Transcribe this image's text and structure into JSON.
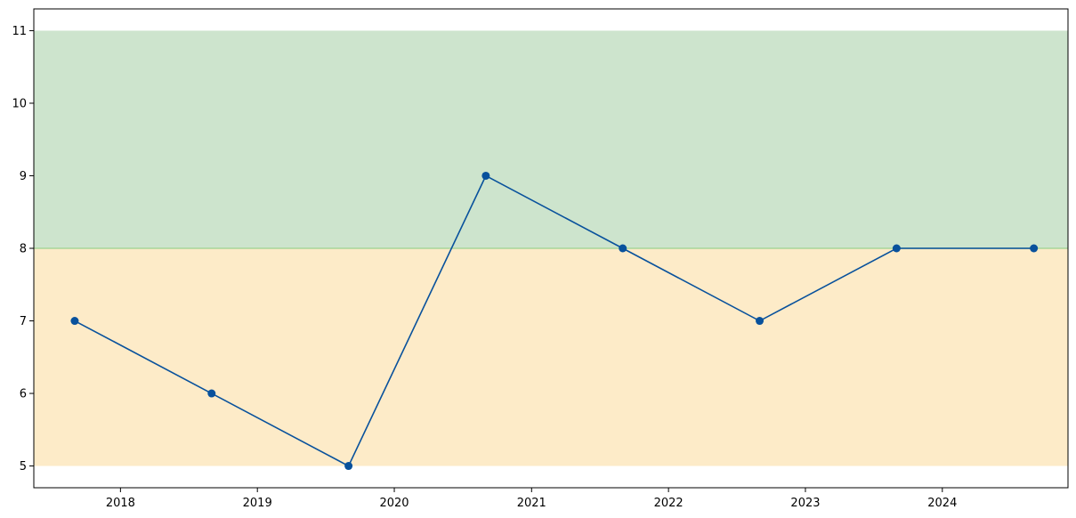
{
  "chart_data": {
    "type": "line",
    "x": [
      "2017-09-01",
      "2018-09-01",
      "2019-09-01",
      "2020-09-01",
      "2021-09-01",
      "2022-09-01",
      "2023-09-01",
      "2024-09-01"
    ],
    "series": [
      {
        "values": [
          7,
          6,
          5,
          9,
          8,
          7,
          8,
          8
        ],
        "color": "#08519c"
      }
    ],
    "bands": [
      {
        "from": 5,
        "to": 8,
        "color": "#fdebc8"
      },
      {
        "from": 8,
        "to": 11,
        "color": "#cde4cd"
      }
    ],
    "threshold_line": {
      "value": 8,
      "color": "#a8d69a"
    },
    "x_ticks": [
      "2018",
      "2019",
      "2020",
      "2021",
      "2022",
      "2023",
      "2024"
    ],
    "y_ticks": [
      5,
      6,
      7,
      8,
      9,
      10,
      11
    ],
    "ylim": [
      4.7,
      11.3
    ],
    "xlim": [
      "2017-05-15",
      "2024-12-01"
    ],
    "grid": false,
    "title": "",
    "xlabel": "",
    "ylabel": ""
  }
}
